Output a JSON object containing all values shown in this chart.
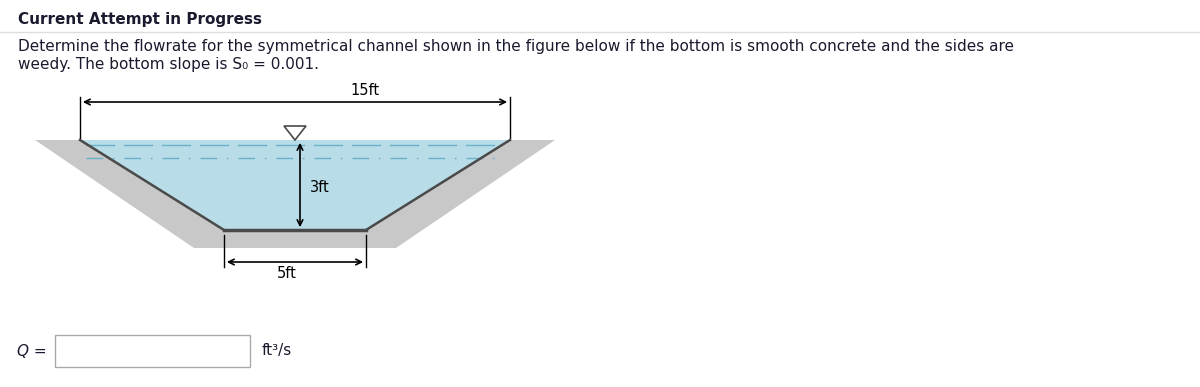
{
  "title": "Current Attempt in Progress",
  "problem_text_line1": "Determine the flowrate for the symmetrical channel shown in the figure below if the bottom is smooth concrete and the sides are",
  "problem_text_line2": "weedy. The bottom slope is S₀ = 0.001.",
  "label_15ft": "15ft",
  "label_5ft": "5ft",
  "label_3ft": "3ft",
  "label_Q": "Q =",
  "label_units": "ft³/s",
  "bg_color": "#ffffff",
  "text_color": "#1a1a2e",
  "channel_gray": "#c8c8c8",
  "channel_dark": "#4a4a4a",
  "water_color": "#b8dde8",
  "water_dash_color": "#6ab0c8",
  "title_fontsize": 11,
  "body_fontsize": 11,
  "anno_fontsize": 10.5,
  "fig_width": 12.0,
  "fig_height": 3.87,
  "dpi": 100
}
